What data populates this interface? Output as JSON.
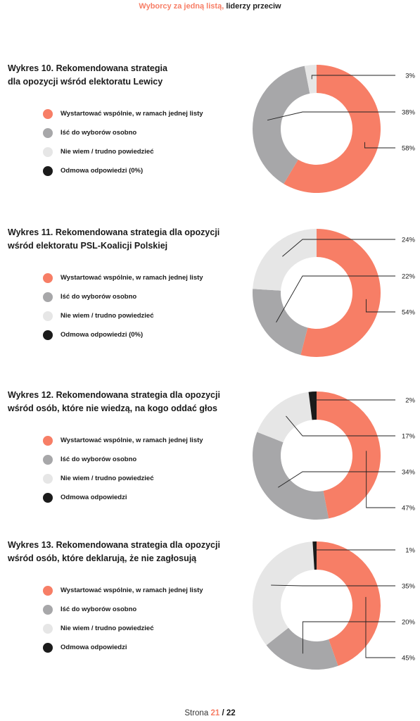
{
  "header": {
    "accent": "Wyborcy za jedną listą,",
    "rest": "liderzy przeciw"
  },
  "colors": {
    "wspolnie": "#f77e66",
    "osobno": "#a7a7a9",
    "nie_wiem": "#e6e6e6",
    "odmowa": "#1b1b1b"
  },
  "chart_data": [
    {
      "type": "pie",
      "title_line1": "Wykres 10. Rekomendowana strategia",
      "title_line2": "dla opozycji wśród elektoratu Lewicy",
      "legend": [
        "Wystartować wspólnie, w ramach jednej listy",
        "Iść do wyborów osobno",
        "Nie wiem / trudno powiedzieć",
        "Odmowa odpowiedzi (0%)"
      ],
      "slices": [
        {
          "label": "Wystartować wspólnie, w ramach jednej listy",
          "value": 58,
          "display": "58%"
        },
        {
          "label": "Iść do wyborów osobno",
          "value": 38,
          "display": "38%"
        },
        {
          "label": "Nie wiem / trudno powiedzieć",
          "value": 3,
          "display": "3%"
        },
        {
          "label": "Odmowa odpowiedzi",
          "value": 0,
          "display": ""
        }
      ]
    },
    {
      "type": "pie",
      "title_line1": "Wykres 11. Rekomendowana strategia dla opozycji",
      "title_line2": "wśród elektoratu PSL-Koalicji Polskiej",
      "legend": [
        "Wystartować wspólnie, w ramach jednej listy",
        "Iść do wyborów osobno",
        "Nie wiem / trudno powiedzieć",
        "Odmowa odpowiedzi (0%)"
      ],
      "slices": [
        {
          "label": "Wystartować wspólnie, w ramach jednej listy",
          "value": 54,
          "display": "54%"
        },
        {
          "label": "Iść do wyborów osobno",
          "value": 22,
          "display": "22%"
        },
        {
          "label": "Nie wiem / trudno powiedzieć",
          "value": 24,
          "display": "24%"
        },
        {
          "label": "Odmowa odpowiedzi",
          "value": 0,
          "display": ""
        }
      ]
    },
    {
      "type": "pie",
      "title_line1": "Wykres 12. Rekomendowana strategia dla opozycji",
      "title_line2": "wśród osób, które nie wiedzą, na kogo oddać głos",
      "legend": [
        "Wystartować wspólnie, w ramach jednej listy",
        "Iść do wyborów osobno",
        "Nie wiem / trudno powiedzieć",
        "Odmowa odpowiedzi"
      ],
      "slices": [
        {
          "label": "Wystartować wspólnie, w ramach jednej listy",
          "value": 47,
          "display": "47%"
        },
        {
          "label": "Iść do wyborów osobno",
          "value": 34,
          "display": "34%"
        },
        {
          "label": "Nie wiem / trudno powiedzieć",
          "value": 17,
          "display": "17%"
        },
        {
          "label": "Odmowa odpowiedzi",
          "value": 2,
          "display": "2%"
        }
      ]
    },
    {
      "type": "pie",
      "title_line1": "Wykres 13. Rekomendowana strategia dla opozycji",
      "title_line2": "wśród osób, które deklarują, że nie zagłosują",
      "legend": [
        "Wystartować wspólnie, w ramach jednej listy",
        "Iść do wyborów osobno",
        "Nie wiem / trudno powiedzieć",
        "Odmowa odpowiedzi"
      ],
      "slices": [
        {
          "label": "Wystartować wspólnie, w ramach jednej listy",
          "value": 45,
          "display": "45%"
        },
        {
          "label": "Iść do wyborów osobno",
          "value": 20,
          "display": "20%"
        },
        {
          "label": "Nie wiem / trudno powiedzieć",
          "value": 35,
          "display": "35%"
        },
        {
          "label": "Odmowa odpowiedzi",
          "value": 1,
          "display": "1%"
        }
      ]
    }
  ],
  "footer": {
    "prefix": "Strona",
    "current": "21",
    "separator": "/",
    "total": "22"
  }
}
